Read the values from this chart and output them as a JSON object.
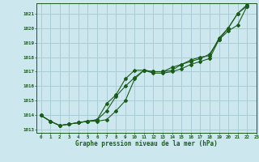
{
  "title": "Graphe pression niveau de la mer (hPa)",
  "bg_color": "#cce8ee",
  "grid_color": "#aaccd4",
  "line_color": "#1a5c1a",
  "xlim": [
    -0.5,
    23
  ],
  "ylim": [
    1012.8,
    1021.7
  ],
  "xticks": [
    0,
    1,
    2,
    3,
    4,
    5,
    6,
    7,
    8,
    9,
    10,
    11,
    12,
    13,
    14,
    15,
    16,
    17,
    18,
    19,
    20,
    21,
    22,
    23
  ],
  "yticks": [
    1013,
    1014,
    1015,
    1016,
    1017,
    1018,
    1019,
    1020,
    1021
  ],
  "series": [
    [
      1014.0,
      1013.6,
      1013.3,
      1013.4,
      1013.5,
      1013.6,
      1013.7,
      1014.8,
      1015.4,
      1016.5,
      1017.1,
      1017.1,
      1017.0,
      1017.0,
      1017.1,
      1017.5,
      1017.8,
      1018.0,
      1018.1,
      1019.3,
      1020.0,
      1021.0,
      1021.5
    ],
    [
      1014.0,
      1013.6,
      1013.3,
      1013.4,
      1013.5,
      1013.6,
      1013.6,
      1013.7,
      1014.3,
      1015.0,
      1016.5,
      1017.1,
      1016.9,
      1016.9,
      1017.0,
      1017.2,
      1017.5,
      1017.7,
      1017.9,
      1019.2,
      1020.0,
      1021.0,
      1021.6
    ],
    [
      1014.0,
      1013.6,
      1013.3,
      1013.4,
      1013.5,
      1013.6,
      1013.7,
      1014.3,
      1015.3,
      1016.0,
      1016.6,
      1017.1,
      1017.0,
      1017.0,
      1017.3,
      1017.5,
      1017.7,
      1017.9,
      1018.2,
      1019.2,
      1019.8,
      1020.2,
      1021.5
    ]
  ],
  "x_values": [
    0,
    1,
    2,
    3,
    4,
    5,
    6,
    7,
    8,
    9,
    10,
    11,
    12,
    13,
    14,
    15,
    16,
    17,
    18,
    19,
    20,
    21,
    22
  ]
}
